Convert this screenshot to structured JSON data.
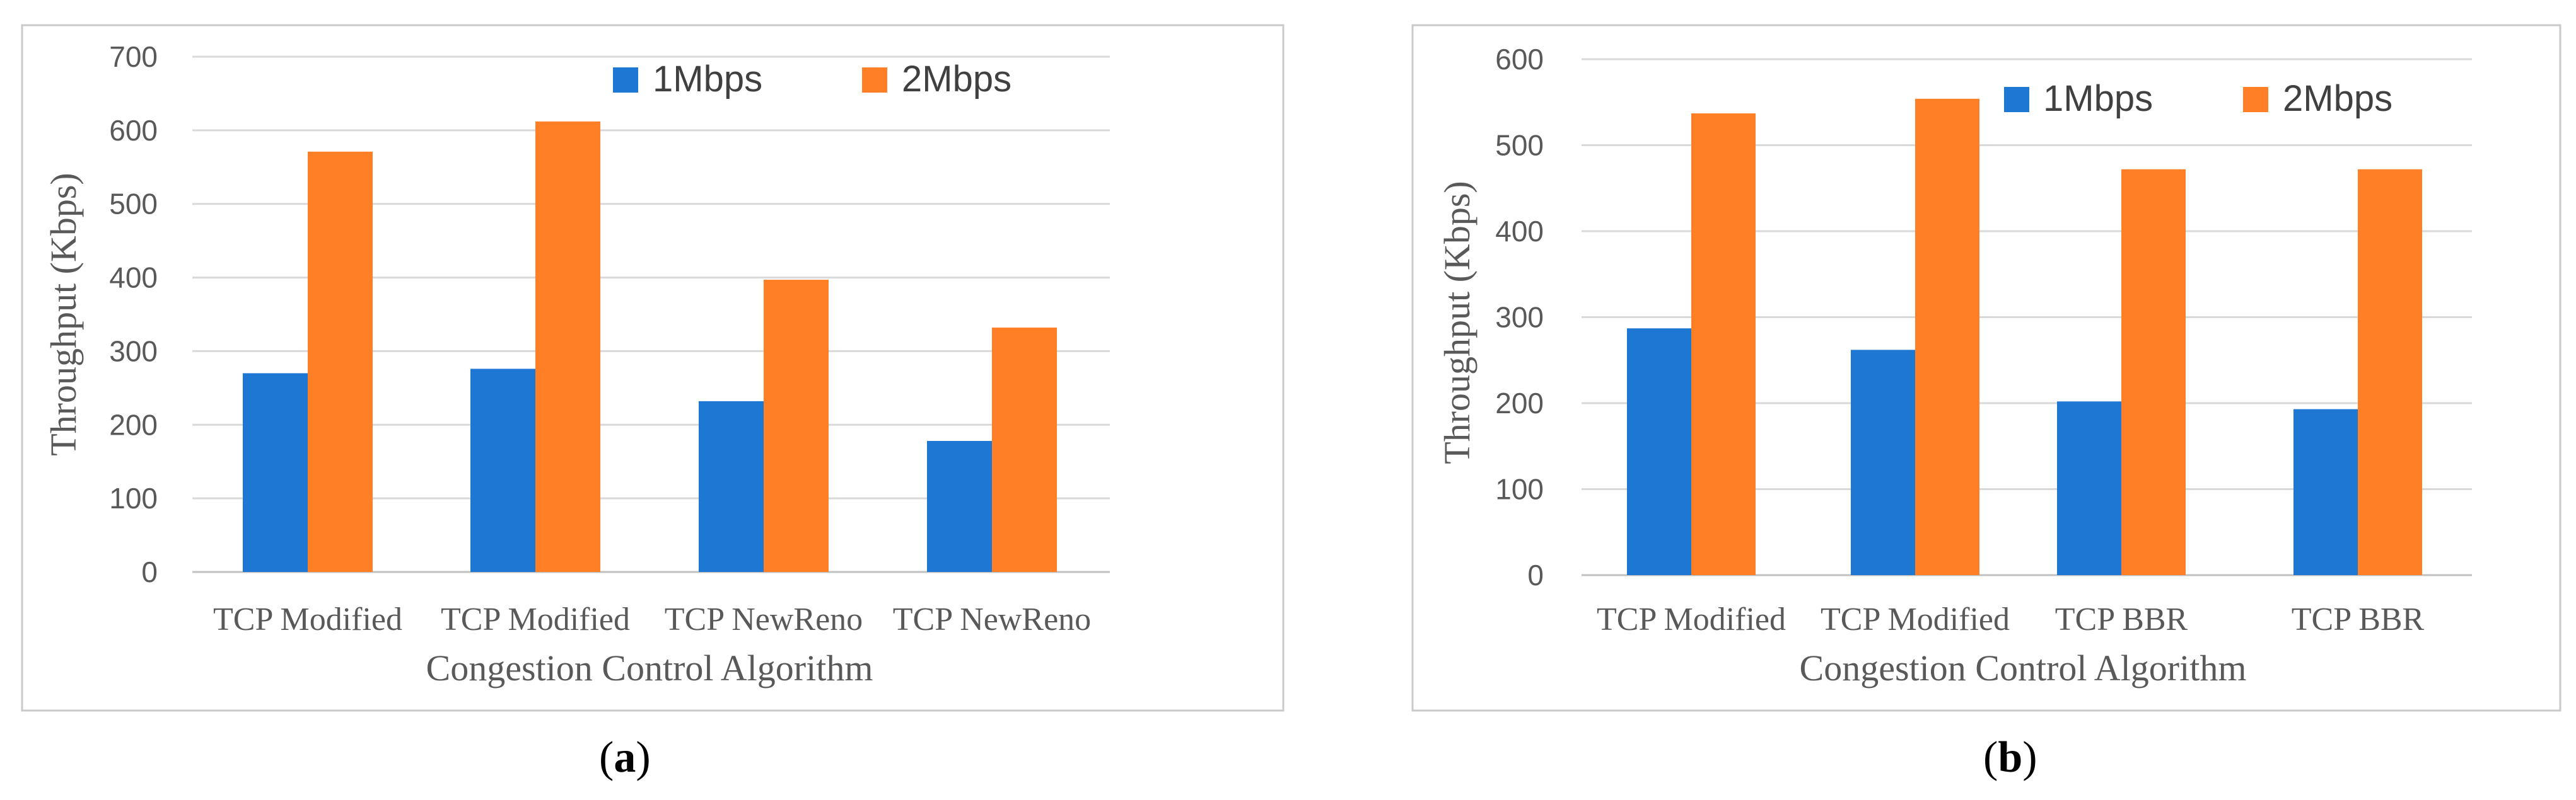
{
  "colors": {
    "series_1": "#1f77d4",
    "series_2": "#ff7f27"
  },
  "chart_data": [
    {
      "type": "bar",
      "caption_letter": "a",
      "categories": [
        "TCP Modified",
        "TCP Modified",
        "TCP NewReno",
        "TCP NewReno"
      ],
      "series": [
        {
          "name": "1Mbps",
          "values": [
            270,
            276,
            232,
            178
          ]
        },
        {
          "name": "2Mbps",
          "values": [
            571,
            612,
            397,
            332
          ]
        }
      ],
      "xlabel": "Congestion Control Algorithm",
      "ylabel": "Throughput (Kbps)",
      "ylim": [
        0,
        700
      ],
      "yticks": [
        0,
        100,
        200,
        300,
        400,
        500,
        600,
        700
      ],
      "grid": true,
      "legend_position": "top-right"
    },
    {
      "type": "bar",
      "caption_letter": "b",
      "categories": [
        "TCP Modified",
        "TCP Modified",
        "TCP BBR",
        "TCP BBR"
      ],
      "series": [
        {
          "name": "1Mbps",
          "values": [
            287,
            262,
            202,
            193
          ]
        },
        {
          "name": "2Mbps",
          "values": [
            537,
            554,
            472,
            472
          ]
        }
      ],
      "xlabel": "Congestion Control Algorithm",
      "ylabel": "Throughput  (Kbps)",
      "ylim": [
        0,
        600
      ],
      "yticks": [
        0,
        100,
        200,
        300,
        400,
        500,
        600
      ],
      "grid": true,
      "legend_position": "top-right"
    }
  ]
}
